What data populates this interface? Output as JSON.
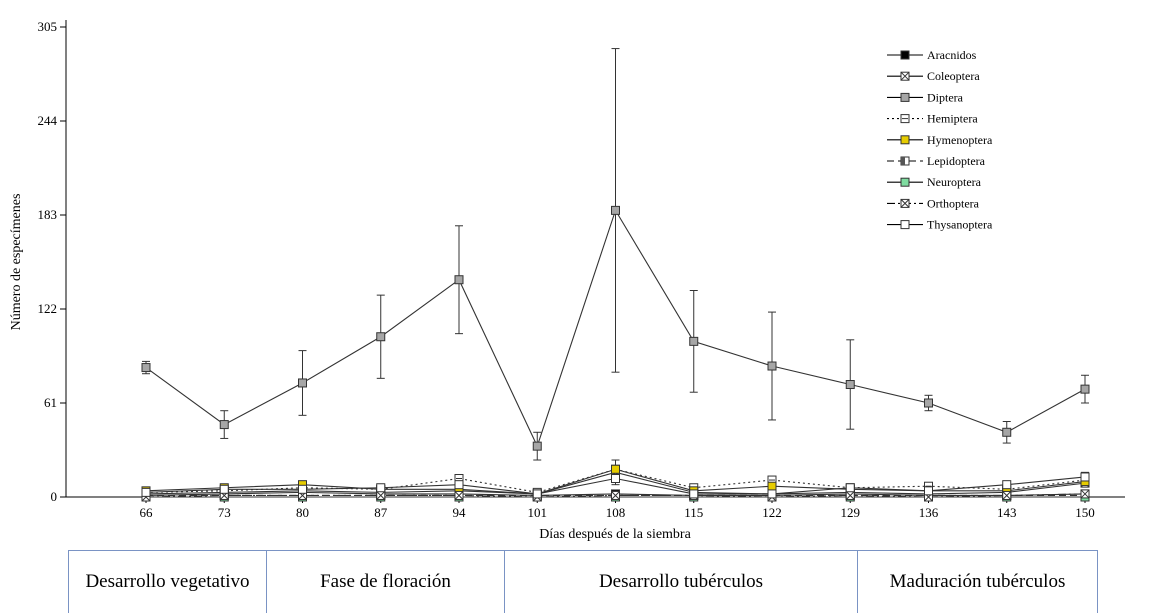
{
  "chart_data": {
    "type": "line",
    "title": "",
    "xlabel": "Días después de la siembra",
    "ylabel": "Número de especímenes",
    "x": [
      66,
      73,
      80,
      87,
      94,
      101,
      108,
      115,
      122,
      129,
      136,
      143,
      150
    ],
    "ylim": [
      0,
      305
    ],
    "yticks": [
      0,
      61,
      122,
      183,
      244,
      305
    ],
    "grid": false,
    "legend": "top-right",
    "series": [
      {
        "name": "Aracnidos",
        "style": "solid",
        "marker": "filled-square",
        "fill": "#000000",
        "values": [
          1,
          2,
          3,
          2,
          2,
          1,
          2,
          1,
          1,
          2,
          1,
          1,
          2
        ]
      },
      {
        "name": "Coleoptera",
        "style": "solid",
        "marker": "x-square",
        "fill": "#ffffff",
        "values": [
          2,
          3,
          4,
          3,
          4,
          2,
          16,
          3,
          2,
          3,
          2,
          3,
          9
        ]
      },
      {
        "name": "Diptera",
        "style": "solid",
        "marker": "filled-square",
        "fill": "#a6a6a6",
        "values": [
          84,
          47,
          74,
          104,
          141,
          33,
          186,
          101,
          85,
          73,
          61,
          42,
          70
        ],
        "err": [
          4,
          9,
          21,
          27,
          35,
          9,
          105,
          33,
          35,
          29,
          5,
          7,
          9
        ]
      },
      {
        "name": "Hemiptera",
        "style": "dotted",
        "marker": "line-square",
        "fill": "#ffffff",
        "values": [
          3,
          4,
          6,
          5,
          12,
          3,
          18,
          6,
          11,
          6,
          7,
          5,
          11
        ]
      },
      {
        "name": "Hymenoptera",
        "style": "solid",
        "marker": "filled-square",
        "fill": "#e6cc00",
        "values": [
          4,
          6,
          8,
          5,
          5,
          2,
          18,
          4,
          7,
          5,
          4,
          4,
          10
        ],
        "err": [
          1,
          1,
          2,
          1,
          1,
          1,
          6,
          1,
          2,
          1,
          1,
          1,
          3
        ]
      },
      {
        "name": "Lepidoptera",
        "style": "dashed",
        "marker": "half-square",
        "fill": "#ffffff",
        "values": [
          1,
          1,
          1,
          1,
          1,
          1,
          1,
          1,
          1,
          1,
          1,
          1,
          1
        ]
      },
      {
        "name": "Neuroptera",
        "style": "solid",
        "marker": "filled-square",
        "fill": "#7fdca0",
        "values": [
          0,
          0,
          0,
          0,
          0,
          0,
          0,
          0,
          0,
          0,
          0,
          0,
          0
        ]
      },
      {
        "name": "Orthoptera",
        "style": "dashdot",
        "marker": "x-square",
        "fill": "#ffffff",
        "values": [
          0,
          1,
          1,
          1,
          1,
          0,
          1,
          1,
          0,
          1,
          0,
          1,
          2
        ]
      },
      {
        "name": "Thysanoptera",
        "style": "solid",
        "marker": "open-square",
        "fill": "#ffffff",
        "values": [
          3,
          5,
          5,
          6,
          8,
          2,
          12,
          2,
          2,
          6,
          4,
          8,
          13
        ],
        "err": [
          1,
          1,
          1,
          1,
          2,
          1,
          4,
          1,
          1,
          1,
          1,
          2,
          3
        ]
      }
    ]
  },
  "phases": [
    {
      "label": "Desarrollo vegetativo"
    },
    {
      "label": "Fase de floración"
    },
    {
      "label": "Desarrollo tubérculos"
    },
    {
      "label": "Maduración tubérculos"
    }
  ]
}
